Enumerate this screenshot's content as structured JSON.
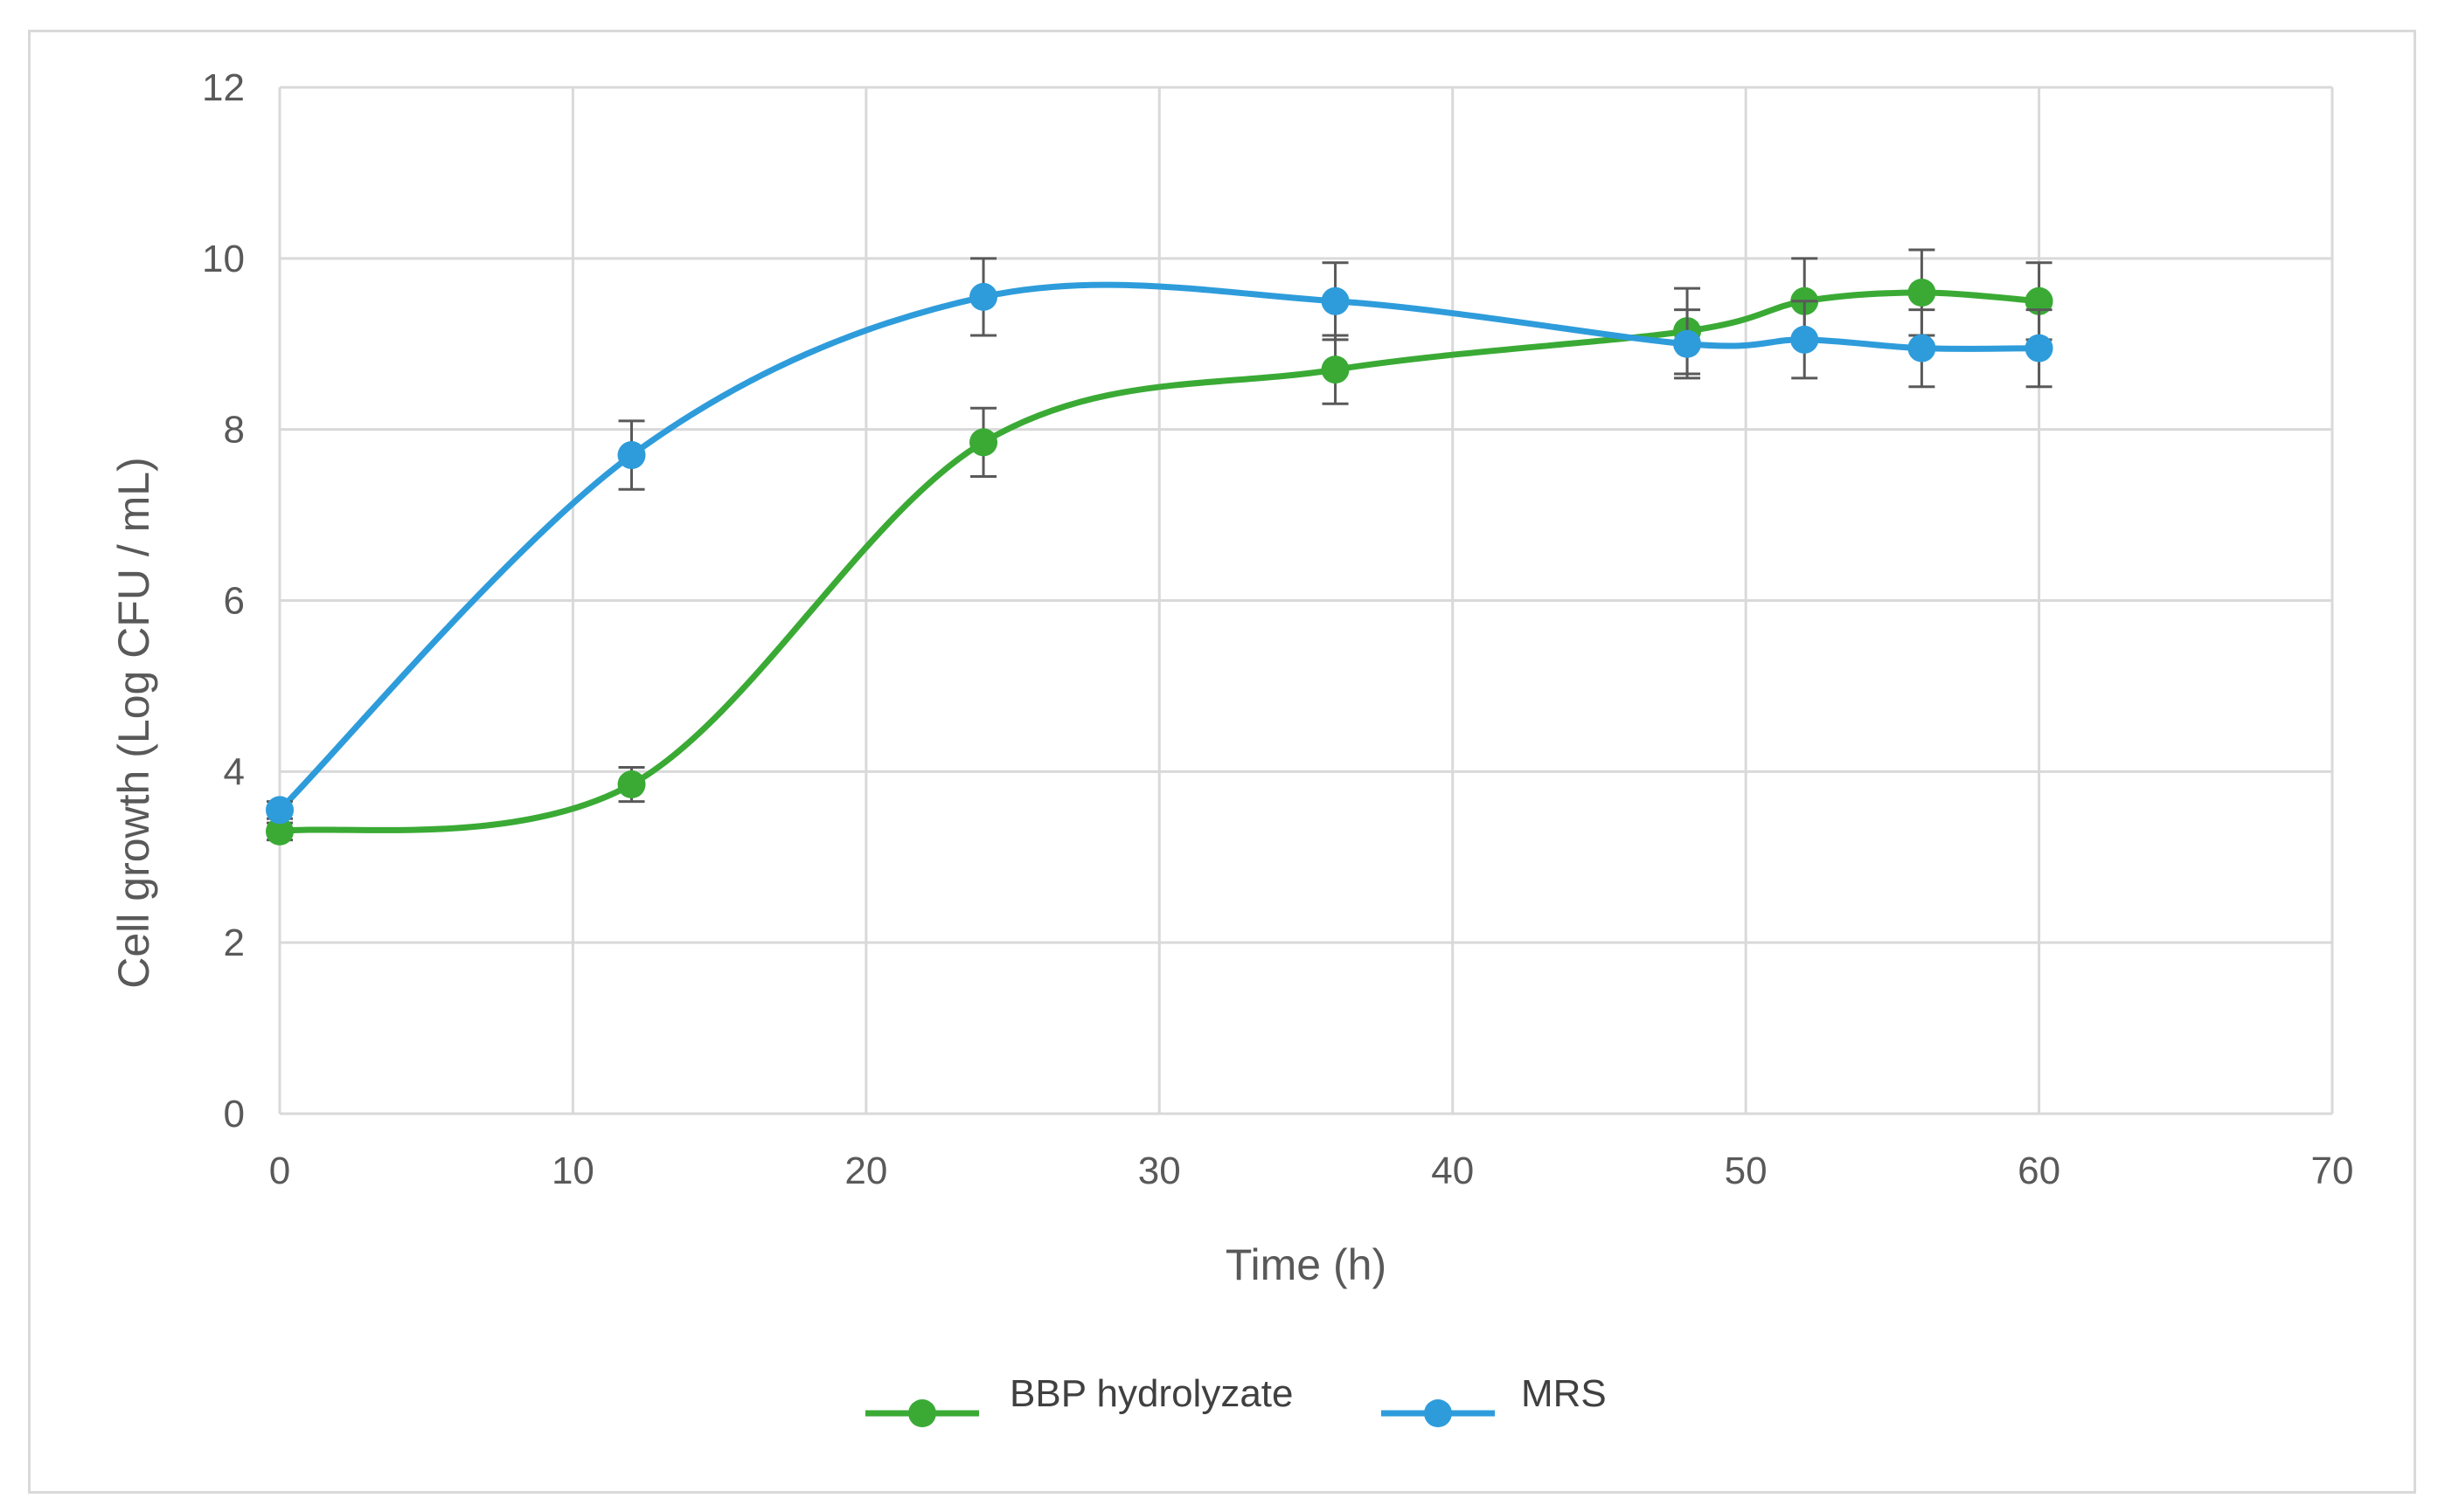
{
  "chart_data": {
    "type": "line",
    "title": "",
    "xlabel": "Time (h)",
    "ylabel": "Cell growth (Log CFU / mL)",
    "xlim": [
      0,
      70
    ],
    "ylim": [
      0,
      12
    ],
    "xticks": [
      0,
      10,
      20,
      30,
      40,
      50,
      60,
      70
    ],
    "yticks": [
      0,
      2,
      4,
      6,
      8,
      10,
      12
    ],
    "grid": true,
    "legend_position": "bottom-center",
    "series": [
      {
        "name": "BBP hydrolyzate",
        "color": "#3aaa35",
        "x": [
          0,
          12,
          24,
          36,
          48,
          52,
          56,
          60
        ],
        "y": [
          3.3,
          3.85,
          7.85,
          8.7,
          9.15,
          9.5,
          9.6,
          9.5
        ],
        "error": [
          0.1,
          0.2,
          0.4,
          0.4,
          0.5,
          0.5,
          0.5,
          0.45
        ]
      },
      {
        "name": "MRS",
        "color": "#2e9cdb",
        "x": [
          0,
          12,
          24,
          36,
          48,
          52,
          56,
          60
        ],
        "y": [
          3.55,
          7.7,
          9.55,
          9.5,
          9.0,
          9.05,
          8.95,
          8.95
        ],
        "error": [
          0.1,
          0.4,
          0.45,
          0.45,
          0.4,
          0.45,
          0.45,
          0.45
        ]
      }
    ]
  }
}
